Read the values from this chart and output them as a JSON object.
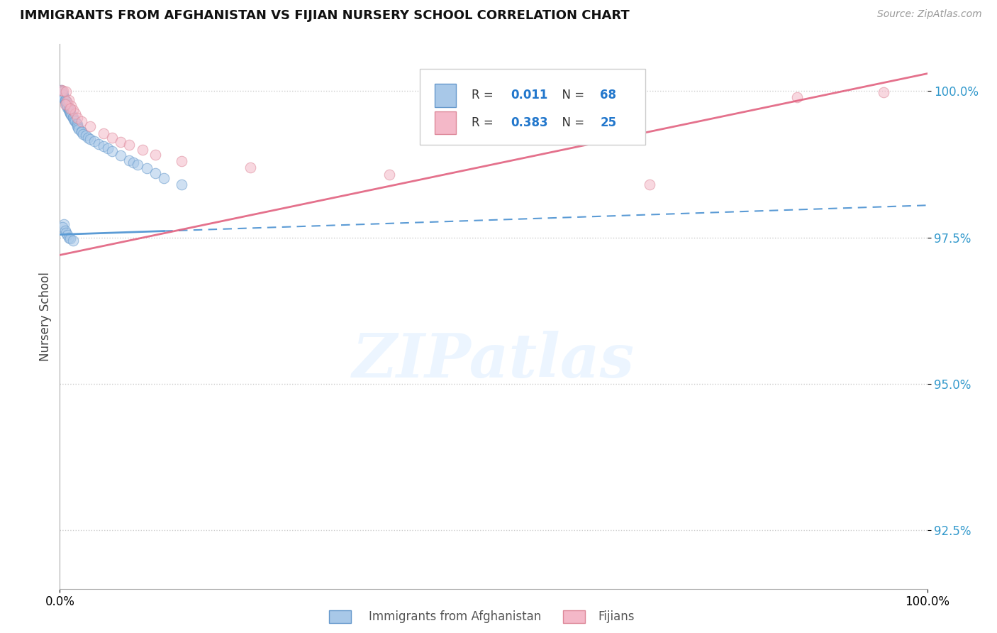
{
  "title": "IMMIGRANTS FROM AFGHANISTAN VS FIJIAN NURSERY SCHOOL CORRELATION CHART",
  "source": "Source: ZipAtlas.com",
  "ylabel": "Nursery School",
  "xlim": [
    0.0,
    1.0
  ],
  "ylim": [
    0.915,
    1.008
  ],
  "yticks": [
    0.925,
    0.95,
    0.975,
    1.0
  ],
  "ytick_labels": [
    "92.5%",
    "95.0%",
    "97.5%",
    "100.0%"
  ],
  "xtick_labels": [
    "0.0%",
    "100.0%"
  ],
  "xticks": [
    0.0,
    1.0
  ],
  "legend_xlabel": [
    "Immigrants from Afghanistan",
    "Fijians"
  ],
  "watermark": "ZIPatlas",
  "background_color": "#ffffff",
  "title_fontsize": 13,
  "blue_line": {
    "x0": 0.0,
    "x1": 1.0,
    "y0": 0.9755,
    "y1": 0.9805,
    "color": "#5b9bd5",
    "linewidth": 2.0
  },
  "pink_line": {
    "x0": 0.0,
    "x1": 1.0,
    "y0": 0.972,
    "y1": 1.003,
    "color": "#e05878",
    "linewidth": 2.0
  },
  "dot_color_blue": "#a8c8e8",
  "dot_edge_blue": "#6699cc",
  "dot_color_pink": "#f4b8c8",
  "dot_edge_pink": "#dd8899",
  "dot_size": 110,
  "dot_alpha": 0.55,
  "legend_R_blue": "0.011",
  "legend_N_blue": "68",
  "legend_R_pink": "0.383",
  "legend_N_pink": "25",
  "grid_color": "#cccccc",
  "grid_style": "dotted"
}
